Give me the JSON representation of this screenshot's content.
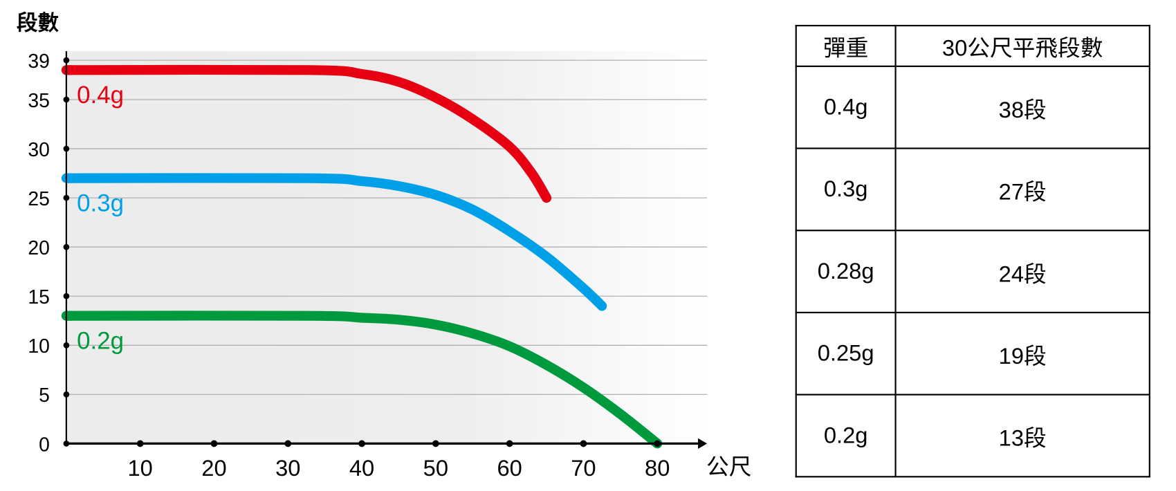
{
  "chart_data": {
    "type": "line",
    "ylabel": "段數",
    "xlabel": "公尺",
    "x_ticks": [
      10,
      20,
      30,
      40,
      50,
      60,
      70,
      80
    ],
    "y_ticks": [
      0,
      5,
      10,
      15,
      20,
      25,
      30,
      35,
      39
    ],
    "xlim": [
      0,
      85
    ],
    "ylim": [
      0,
      39
    ],
    "grid": true,
    "series": [
      {
        "name": "0.4g",
        "color": "#e60012",
        "points": [
          [
            0,
            38
          ],
          [
            33,
            38
          ],
          [
            40,
            37.6
          ],
          [
            45,
            36.8
          ],
          [
            50,
            35.2
          ],
          [
            55,
            33
          ],
          [
            60,
            30.2
          ],
          [
            63,
            27.5
          ],
          [
            65,
            25
          ]
        ]
      },
      {
        "name": "0.3g",
        "color": "#00a0e9",
        "points": [
          [
            0,
            27
          ],
          [
            33,
            27
          ],
          [
            40,
            26.7
          ],
          [
            45,
            26.2
          ],
          [
            50,
            25.3
          ],
          [
            55,
            23.8
          ],
          [
            60,
            21.6
          ],
          [
            65,
            19
          ],
          [
            70,
            15.8
          ],
          [
            72.5,
            14
          ]
        ]
      },
      {
        "name": "0.2g",
        "color": "#009a3e",
        "points": [
          [
            0,
            13
          ],
          [
            33,
            13
          ],
          [
            40,
            12.8
          ],
          [
            45,
            12.6
          ],
          [
            50,
            12.1
          ],
          [
            55,
            11.2
          ],
          [
            60,
            9.9
          ],
          [
            65,
            8
          ],
          [
            70,
            5.7
          ],
          [
            75,
            3
          ],
          [
            80,
            0
          ]
        ]
      }
    ]
  },
  "table": {
    "headers": [
      "彈重",
      "30公尺平飛段數"
    ],
    "rows": [
      [
        "0.4g",
        "38段"
      ],
      [
        "0.3g",
        "27段"
      ],
      [
        "0.28g",
        "24段"
      ],
      [
        "0.25g",
        "19段"
      ],
      [
        "0.2g",
        "13段"
      ]
    ]
  }
}
